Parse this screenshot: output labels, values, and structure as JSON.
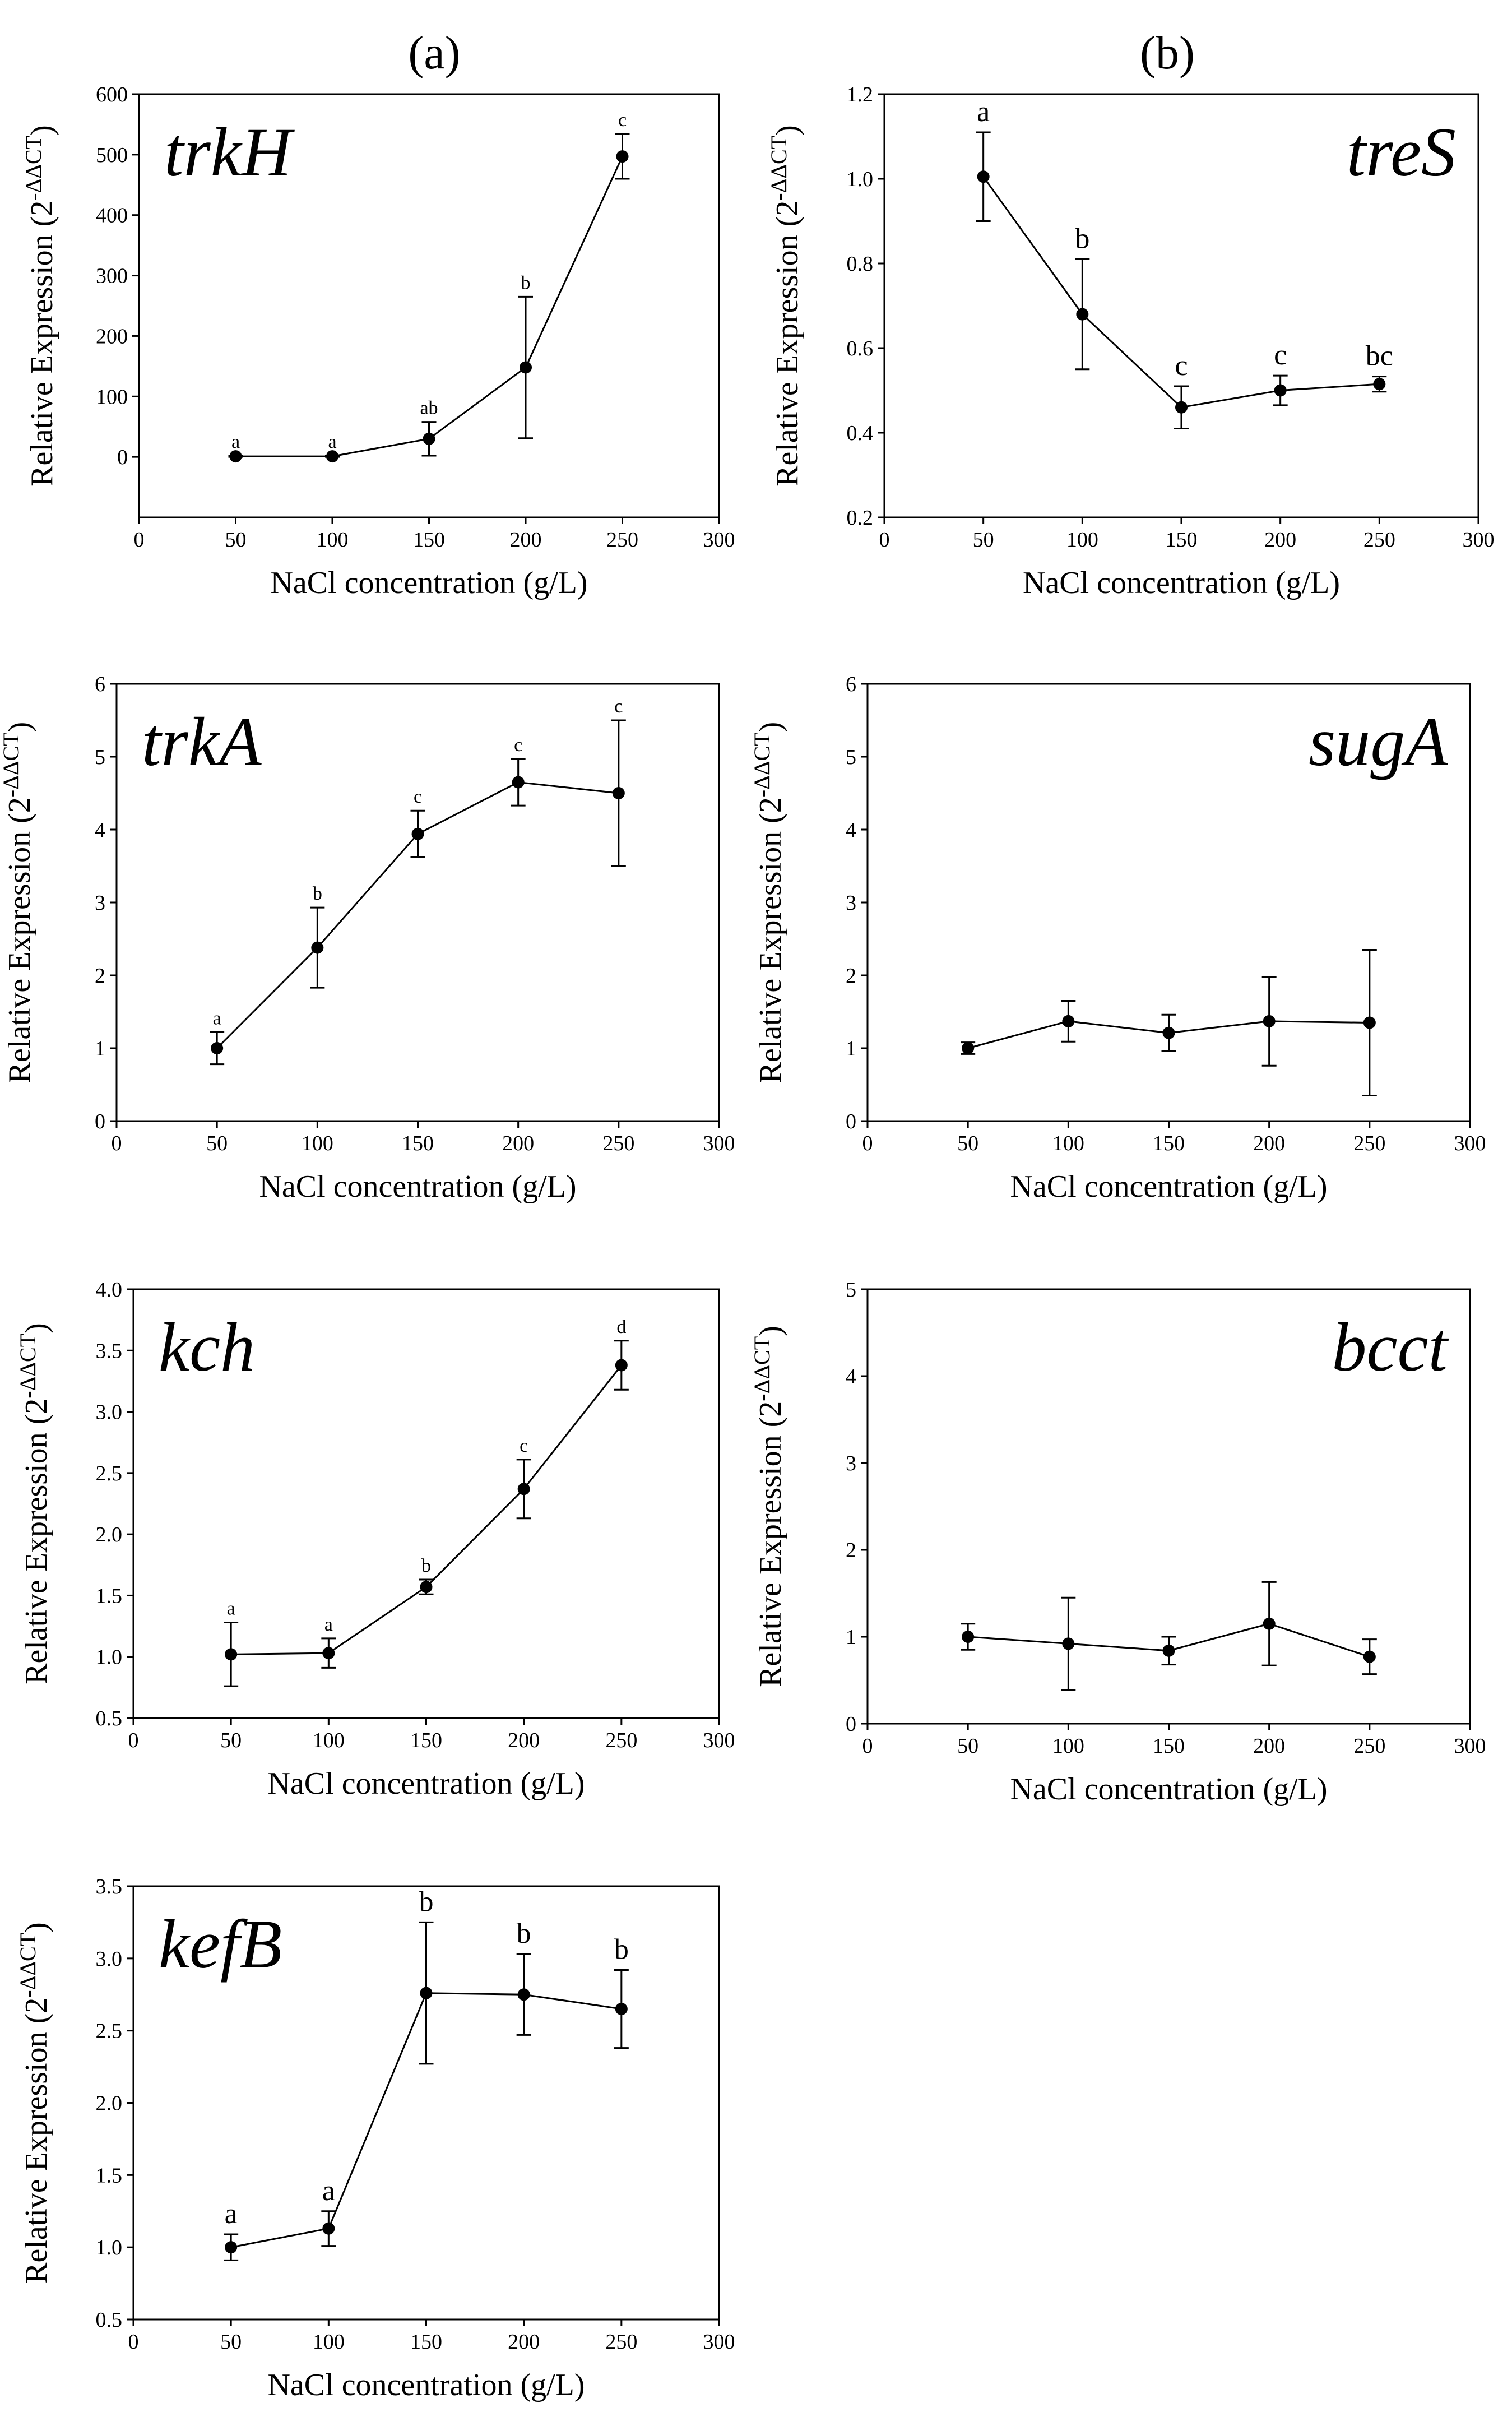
{
  "column_labels": [
    "(a)",
    "(b)"
  ],
  "chart_data": [
    {
      "id": "trkH",
      "type": "line",
      "title": "trkH",
      "column": "(a)",
      "xlabel": "NaCl concentration (g/L)",
      "ylabel": "Relative Expression (2",
      "ylabel_sup": "-ΔΔCT",
      "ylabel_end": ")",
      "xlim": [
        0,
        300
      ],
      "ylim": [
        -100,
        600
      ],
      "xticks": [
        "0",
        "50",
        "100",
        "150",
        "200",
        "250",
        "300"
      ],
      "yticks": [
        "0",
        "100",
        "200",
        "300",
        "400",
        "500",
        "600"
      ],
      "x": [
        50,
        100,
        150,
        200,
        250
      ],
      "values": [
        1,
        1,
        30,
        148,
        497
      ],
      "errors": [
        1,
        1,
        28,
        117,
        37
      ],
      "significance": [
        "a",
        "a",
        "ab",
        "b",
        "c"
      ]
    },
    {
      "id": "treS",
      "type": "line",
      "title": "treS",
      "column": "(b)",
      "xlabel": "NaCl concentration (g/L)",
      "ylabel": "Relative Expression (2",
      "ylabel_sup": "-ΔΔCT",
      "ylabel_end": ")",
      "xlim": [
        0,
        300
      ],
      "ylim": [
        0.2,
        1.2
      ],
      "xticks": [
        "0",
        "50",
        "100",
        "150",
        "200",
        "250",
        "300"
      ],
      "yticks": [
        "0.2",
        "0.4",
        "0.6",
        "0.8",
        "1.0",
        "1.2"
      ],
      "x": [
        50,
        100,
        150,
        200,
        250
      ],
      "values": [
        1.005,
        0.68,
        0.46,
        0.5,
        0.515
      ],
      "errors": [
        0.105,
        0.13,
        0.05,
        0.035,
        0.018
      ],
      "significance": [
        "a",
        "b",
        "c",
        "c",
        "bc"
      ]
    },
    {
      "id": "trkA",
      "type": "line",
      "title": "trkA",
      "column": "(a)",
      "xlabel": "NaCl concentration (g/L)",
      "ylabel": "Relative Expression (2",
      "ylabel_sup": "-ΔΔCT",
      "ylabel_end": ")",
      "xlim": [
        0,
        300
      ],
      "ylim": [
        0,
        6
      ],
      "xticks": [
        "0",
        "50",
        "100",
        "150",
        "200",
        "250",
        "300"
      ],
      "yticks": [
        "0",
        "1",
        "2",
        "3",
        "4",
        "5",
        "6"
      ],
      "x": [
        50,
        100,
        150,
        200,
        250
      ],
      "values": [
        1.0,
        2.38,
        3.94,
        4.65,
        4.5
      ],
      "errors": [
        0.22,
        0.55,
        0.32,
        0.32,
        1.0
      ],
      "significance": [
        "a",
        "b",
        "c",
        "c",
        "c"
      ]
    },
    {
      "id": "sugA",
      "type": "line",
      "title": "sugA",
      "column": "(b)",
      "xlabel": "NaCl concentration (g/L)",
      "ylabel": "Relative Expression (2",
      "ylabel_sup": "-ΔΔCT",
      "ylabel_end": ")",
      "xlim": [
        0,
        300
      ],
      "ylim": [
        0,
        6
      ],
      "xticks": [
        "0",
        "50",
        "100",
        "150",
        "200",
        "250",
        "300"
      ],
      "yticks": [
        "0",
        "1",
        "2",
        "3",
        "4",
        "5",
        "6"
      ],
      "x": [
        50,
        100,
        150,
        200,
        250
      ],
      "values": [
        1.0,
        1.37,
        1.21,
        1.37,
        1.35
      ],
      "errors": [
        0.08,
        0.28,
        0.25,
        0.61,
        1.0
      ],
      "significance": []
    },
    {
      "id": "kch",
      "type": "line",
      "title": "kch",
      "column": "(a)",
      "xlabel": "NaCl concentration (g/L)",
      "ylabel": "Relative Expression (2",
      "ylabel_sup": "-ΔΔCT",
      "ylabel_end": ")",
      "xlim": [
        0,
        300
      ],
      "ylim": [
        0.5,
        4.0
      ],
      "xticks": [
        "0",
        "50",
        "100",
        "150",
        "200",
        "250",
        "300"
      ],
      "yticks": [
        "0.5",
        "1.0",
        "1.5",
        "2.0",
        "2.5",
        "3.0",
        "3.5",
        "4.0"
      ],
      "x": [
        50,
        100,
        150,
        200,
        250
      ],
      "values": [
        1.02,
        1.03,
        1.57,
        2.37,
        3.38
      ],
      "errors": [
        0.26,
        0.12,
        0.06,
        0.24,
        0.2
      ],
      "significance": [
        "a",
        "a",
        "b",
        "c",
        "d"
      ]
    },
    {
      "id": "bcct",
      "type": "line",
      "title": "bcct",
      "column": "(b)",
      "xlabel": "NaCl concentration (g/L)",
      "ylabel": "Relative Expression (2",
      "ylabel_sup": "-ΔΔCT",
      "ylabel_end": ")",
      "xlim": [
        0,
        300
      ],
      "ylim": [
        0,
        5
      ],
      "xticks": [
        "0",
        "50",
        "100",
        "150",
        "200",
        "250",
        "300"
      ],
      "yticks": [
        "0",
        "1",
        "2",
        "3",
        "4",
        "5"
      ],
      "x": [
        50,
        100,
        150,
        200,
        250
      ],
      "values": [
        1.0,
        0.92,
        0.84,
        1.15,
        0.77
      ],
      "errors": [
        0.15,
        0.53,
        0.16,
        0.48,
        0.2
      ],
      "significance": []
    },
    {
      "id": "kefB",
      "type": "line",
      "title": "kefB",
      "column": "(a)",
      "xlabel": "NaCl concentration (g/L)",
      "ylabel": "Relative Expression (2",
      "ylabel_sup": "-ΔΔCT",
      "ylabel_end": ")",
      "xlim": [
        0,
        300
      ],
      "ylim": [
        0.5,
        3.5
      ],
      "xticks": [
        "0",
        "50",
        "100",
        "150",
        "200",
        "250",
        "300"
      ],
      "yticks": [
        "0.5",
        "1.0",
        "1.5",
        "2.0",
        "2.5",
        "3.0",
        "3.5"
      ],
      "x": [
        50,
        100,
        150,
        200,
        250
      ],
      "values": [
        1.0,
        1.13,
        2.76,
        2.75,
        2.65
      ],
      "errors": [
        0.09,
        0.12,
        0.49,
        0.28,
        0.27
      ],
      "significance": [
        "a",
        "a",
        "b",
        "b",
        "b"
      ]
    }
  ]
}
